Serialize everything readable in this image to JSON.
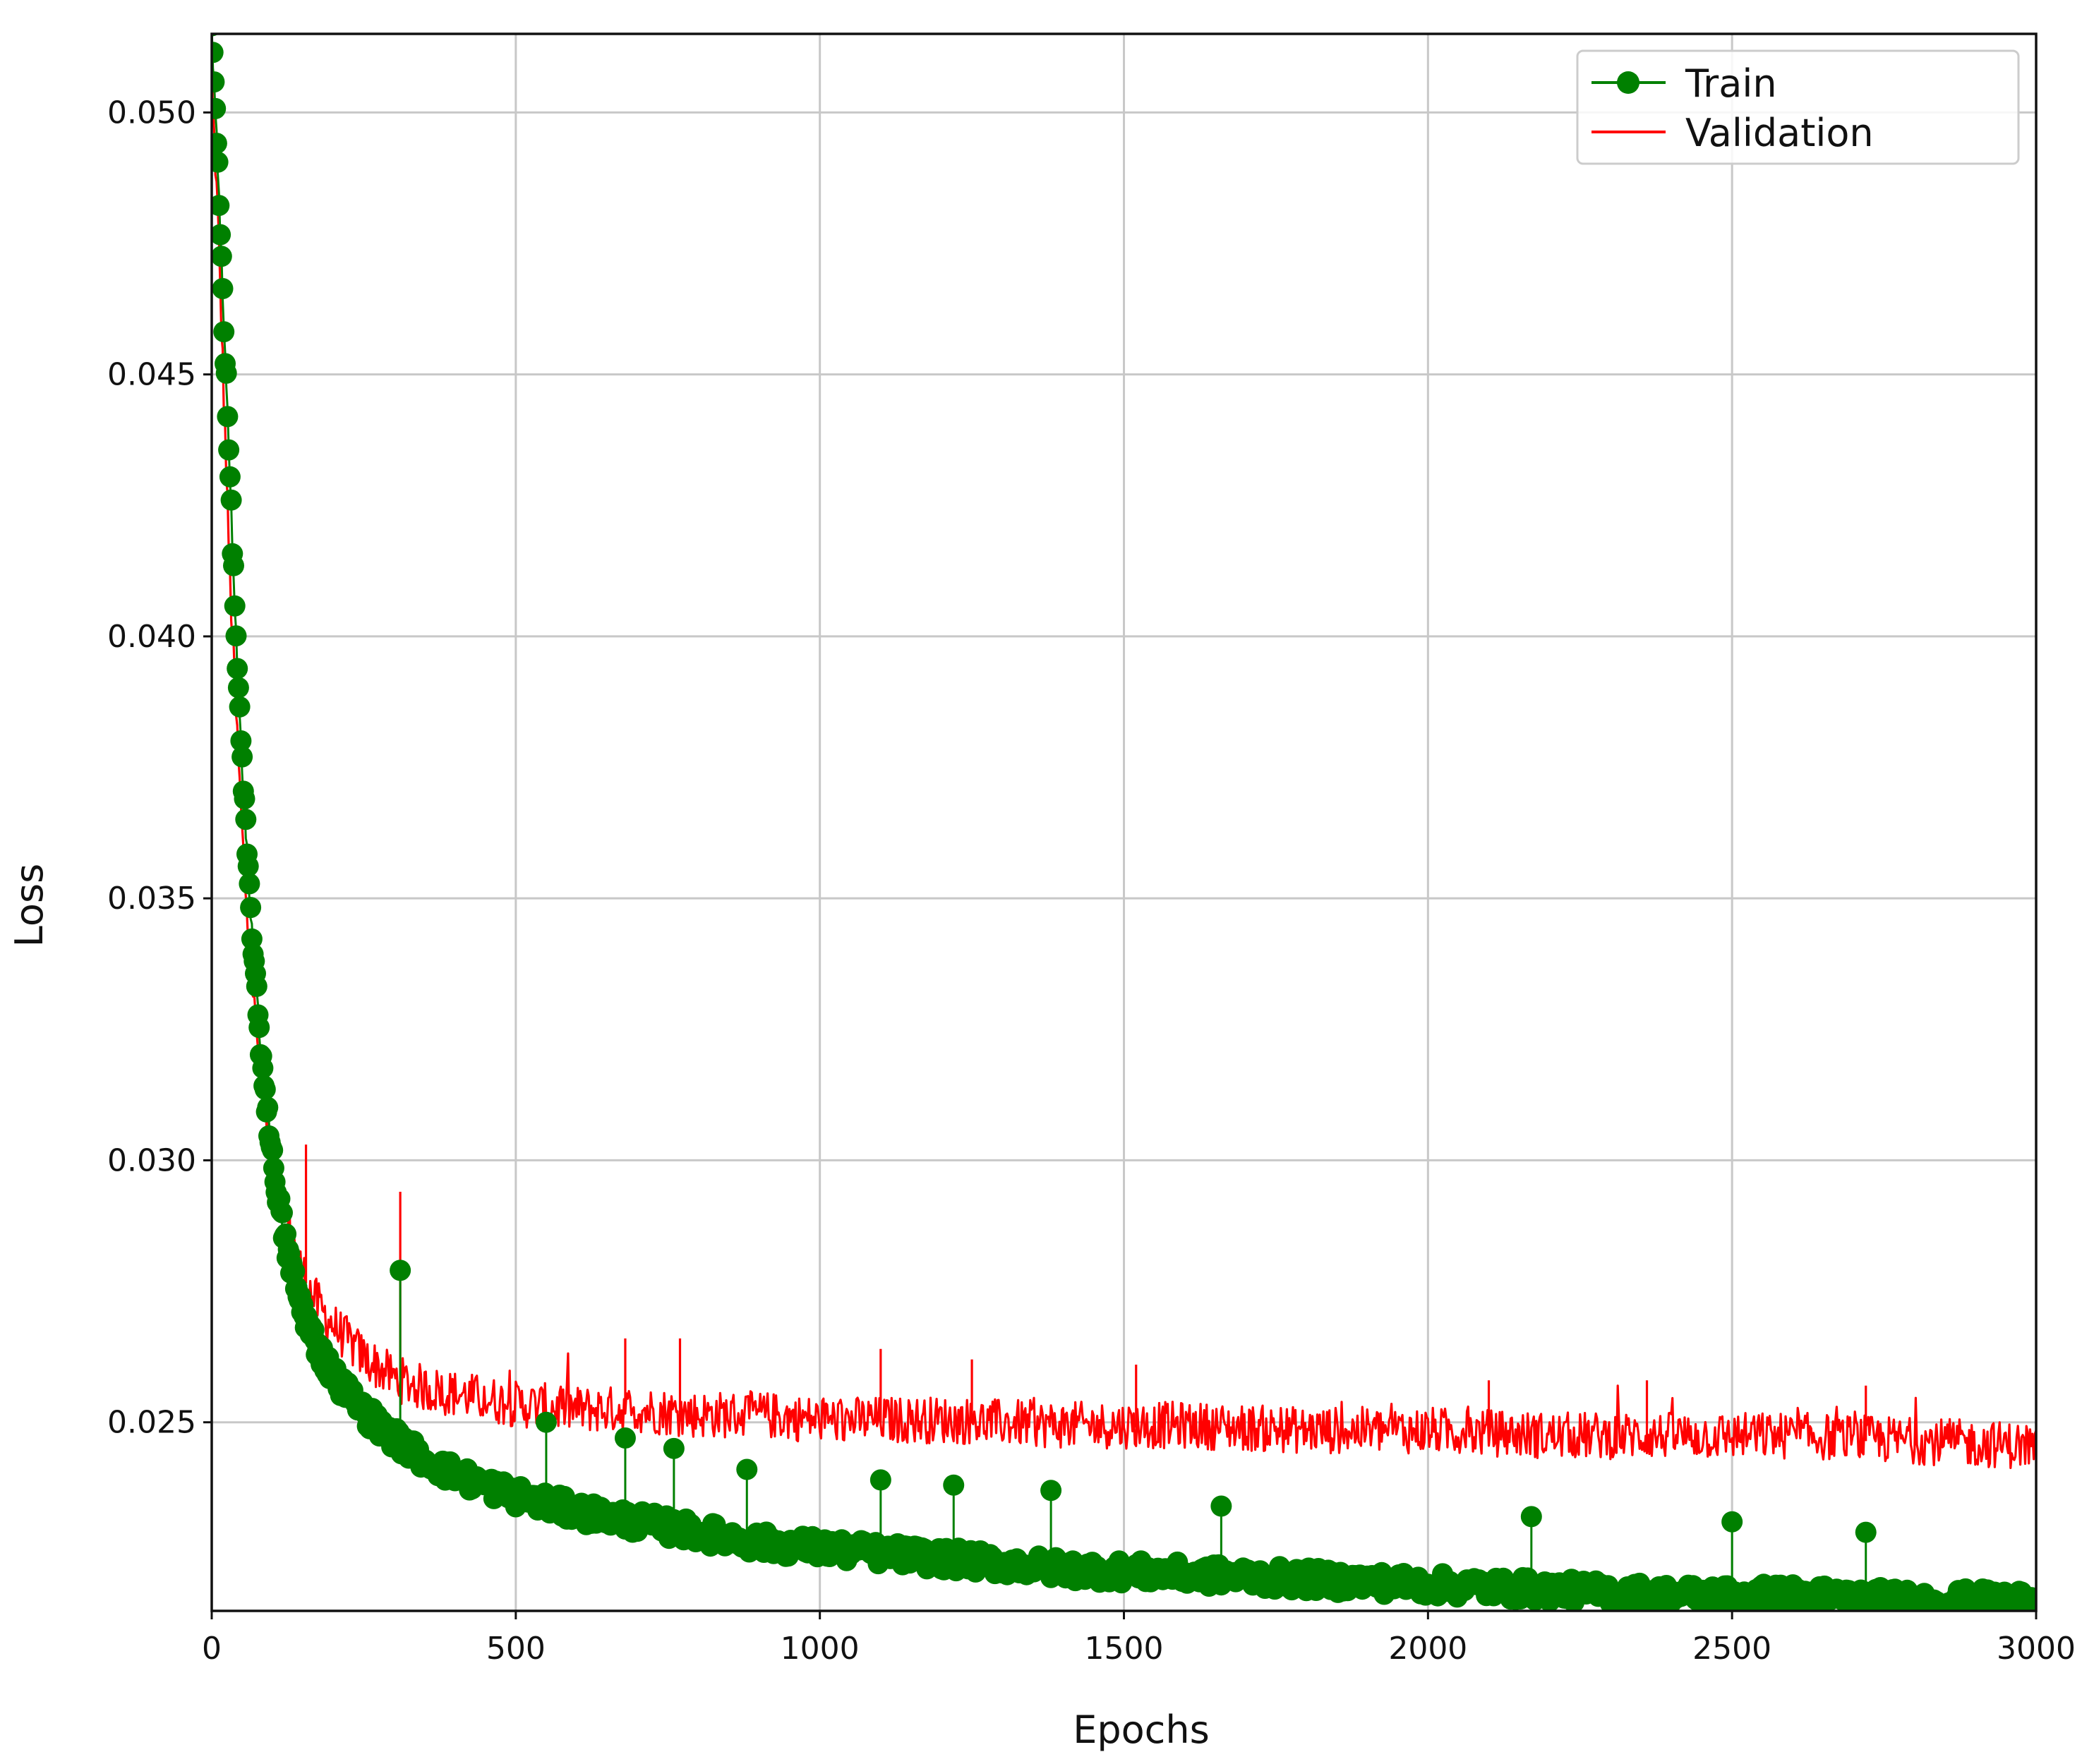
{
  "chart_data": {
    "type": "line",
    "title": "",
    "xlabel": "Epochs",
    "ylabel": "Loss",
    "xlim": [
      0,
      3000
    ],
    "ylim": [
      0.0214,
      0.0515
    ],
    "xticks": [
      0,
      500,
      1000,
      1500,
      2000,
      2500,
      3000
    ],
    "xtick_labels": [
      "0",
      "500",
      "1000",
      "1500",
      "2000",
      "2500",
      "3000"
    ],
    "yticks": [
      0.025,
      0.03,
      0.035,
      0.04,
      0.045,
      0.05
    ],
    "ytick_labels": [
      "0.025",
      "0.030",
      "0.035",
      "0.040",
      "0.045",
      "0.050"
    ],
    "grid": true,
    "legend_position": "top-right",
    "series": [
      {
        "name": "Train",
        "color": "#008000",
        "marker": "circle",
        "x": [
          0,
          10,
          20,
          30,
          40,
          50,
          60,
          70,
          80,
          100,
          120,
          140,
          160,
          180,
          200,
          250,
          300,
          350,
          400,
          500,
          600,
          700,
          800,
          900,
          1000,
          1200,
          1400,
          1600,
          1800,
          2000,
          2200,
          2400,
          2600,
          2800,
          3000
        ],
        "y": [
          0.0515,
          0.049,
          0.046,
          0.043,
          0.04,
          0.0375,
          0.0355,
          0.0337,
          0.0322,
          0.03,
          0.0285,
          0.0275,
          0.0268,
          0.0263,
          0.0259,
          0.0252,
          0.0247,
          0.0243,
          0.024,
          0.0236,
          0.0233,
          0.0231,
          0.0229,
          0.0227,
          0.0226,
          0.0224,
          0.0222,
          0.0221,
          0.022,
          0.0219,
          0.0218,
          0.0217,
          0.0217,
          0.0216,
          0.0216
        ],
        "spikes": [
          {
            "x": 310,
            "y": 0.0279
          },
          {
            "x": 550,
            "y": 0.025
          },
          {
            "x": 680,
            "y": 0.0247
          },
          {
            "x": 760,
            "y": 0.0245
          },
          {
            "x": 880,
            "y": 0.0241
          },
          {
            "x": 1100,
            "y": 0.0239
          },
          {
            "x": 1220,
            "y": 0.0238
          },
          {
            "x": 1380,
            "y": 0.0237
          },
          {
            "x": 1660,
            "y": 0.0234
          },
          {
            "x": 2170,
            "y": 0.0232
          },
          {
            "x": 2500,
            "y": 0.0231
          },
          {
            "x": 2720,
            "y": 0.0229
          }
        ]
      },
      {
        "name": "Validation",
        "color": "#ff0000",
        "marker": "none",
        "x": [
          0,
          10,
          20,
          30,
          40,
          50,
          60,
          70,
          80,
          100,
          120,
          140,
          160,
          180,
          200,
          250,
          300,
          350,
          400,
          500,
          600,
          700,
          800,
          900,
          1000,
          1200,
          1400,
          1600,
          1800,
          2000,
          2200,
          2400,
          2600,
          2800,
          3000
        ],
        "y": [
          0.0505,
          0.048,
          0.0445,
          0.041,
          0.0385,
          0.0362,
          0.0343,
          0.0328,
          0.0316,
          0.03,
          0.029,
          0.0281,
          0.0275,
          0.0271,
          0.0268,
          0.0262,
          0.0258,
          0.0256,
          0.0255,
          0.0253,
          0.0252,
          0.0252,
          0.0251,
          0.0251,
          0.025,
          0.025,
          0.0249,
          0.0249,
          0.0248,
          0.0248,
          0.0247,
          0.0247,
          0.0247,
          0.0246,
          0.0245
        ],
        "spikes": [
          {
            "x": 155,
            "y": 0.0303
          },
          {
            "x": 310,
            "y": 0.0294
          },
          {
            "x": 680,
            "y": 0.0266
          },
          {
            "x": 770,
            "y": 0.0266
          },
          {
            "x": 1100,
            "y": 0.0264
          },
          {
            "x": 1250,
            "y": 0.0262
          },
          {
            "x": 1520,
            "y": 0.0261
          },
          {
            "x": 2100,
            "y": 0.0258
          },
          {
            "x": 2360,
            "y": 0.0258
          },
          {
            "x": 2720,
            "y": 0.0257
          }
        ]
      }
    ]
  }
}
